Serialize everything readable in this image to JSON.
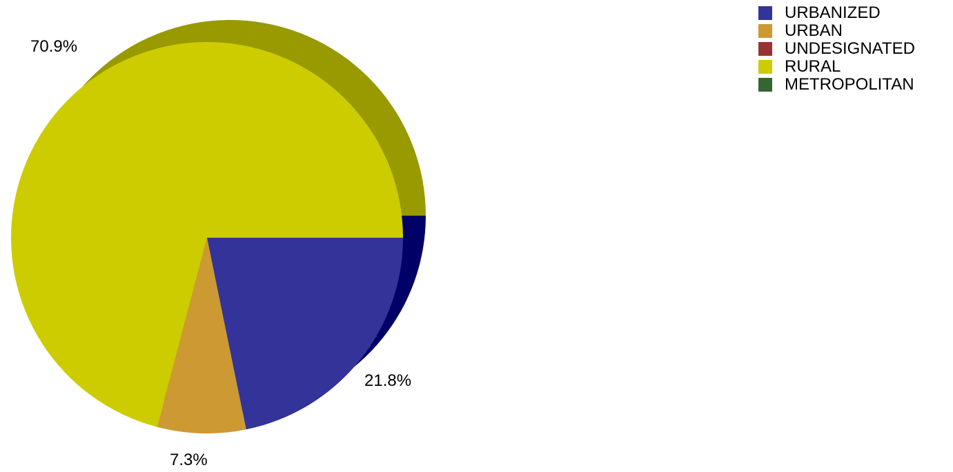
{
  "chart_data": {
    "type": "pie",
    "title": "",
    "legend_position": "top-right",
    "slices": [
      {
        "name": "URBANIZED",
        "value": 21.8,
        "label": "21.8%",
        "color": "#333399",
        "shade": "#000066"
      },
      {
        "name": "URBAN",
        "value": 7.3,
        "label": "7.3%",
        "color": "#CC9933",
        "shade": "#996600"
      },
      {
        "name": "UNDESIGNATED",
        "value": 0,
        "label": "",
        "color": "#993333",
        "shade": "#660000"
      },
      {
        "name": "RURAL",
        "value": 70.9,
        "label": "70.9%",
        "color": "#CCCC00",
        "shade": "#999900"
      },
      {
        "name": "METROPOLITAN",
        "value": 0,
        "label": "",
        "color": "#336633",
        "shade": "#003300"
      }
    ]
  }
}
